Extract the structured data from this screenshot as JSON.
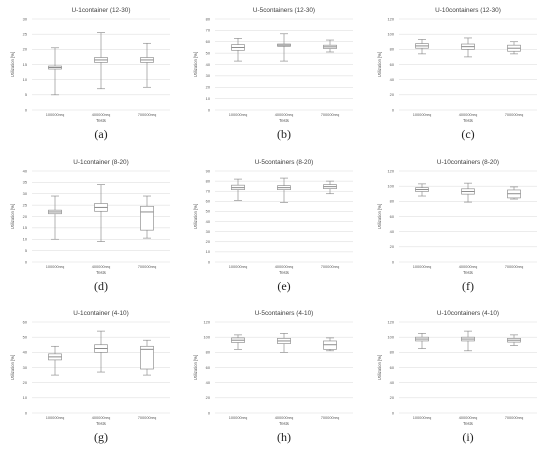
{
  "colors": {
    "box_fill": "#ffffff",
    "median_band": "#7f7f7f",
    "stroke": "#808080",
    "grid": "#d9d9d9",
    "text": "#595959"
  },
  "chart_data": [
    {
      "type": "box",
      "caption": "(a)",
      "title": "U-1container (12-30)",
      "xlabel": "Tests",
      "ylabel": "Utilization [%]",
      "ylim": [
        0,
        30
      ],
      "yticks": [
        0,
        5,
        10,
        15,
        20,
        25,
        30
      ],
      "grid": true,
      "categories": [
        "100000req",
        "400000req",
        "700000req"
      ],
      "boxes": [
        {
          "min": 5,
          "q1": 13.5,
          "median": 14,
          "q3": 14.5,
          "max": 20.5
        },
        {
          "min": 7,
          "q1": 15.7,
          "median": 16.5,
          "q3": 17.3,
          "max": 25.5
        },
        {
          "min": 7.5,
          "q1": 15.7,
          "median": 16.5,
          "q3": 17.3,
          "max": 22
        }
      ]
    },
    {
      "type": "box",
      "caption": "(b)",
      "title": "U-5containers (12-30)",
      "xlabel": "Tests",
      "ylabel": "Utilization [%]",
      "ylim": [
        0,
        80
      ],
      "yticks": [
        0,
        10,
        20,
        30,
        40,
        50,
        60,
        70,
        80
      ],
      "grid": true,
      "categories": [
        "100000req",
        "400000req",
        "700000req"
      ],
      "boxes": [
        {
          "min": 43,
          "q1": 52.5,
          "median": 55,
          "q3": 57.5,
          "max": 63
        },
        {
          "min": 43,
          "q1": 56,
          "median": 57,
          "q3": 58,
          "max": 67
        },
        {
          "min": 51,
          "q1": 54,
          "median": 55.5,
          "q3": 57,
          "max": 61.5
        }
      ]
    },
    {
      "type": "box",
      "caption": "(c)",
      "title": "U-10containers (12-30)",
      "xlabel": "Tests",
      "ylabel": "Utilization [%]",
      "ylim": [
        0,
        120
      ],
      "yticks": [
        0,
        20,
        40,
        60,
        80,
        100,
        120
      ],
      "grid": true,
      "categories": [
        "100000req",
        "400000req",
        "700000req"
      ],
      "boxes": [
        {
          "min": 74,
          "q1": 81.5,
          "median": 84.5,
          "q3": 87.5,
          "max": 93
        },
        {
          "min": 70,
          "q1": 80,
          "median": 83.5,
          "q3": 87,
          "max": 95
        },
        {
          "min": 74,
          "q1": 77.5,
          "median": 81.5,
          "q3": 85.5,
          "max": 90
        }
      ]
    },
    {
      "type": "box",
      "caption": "(d)",
      "title": "U-1container (8-20)",
      "xlabel": "Tests",
      "ylabel": "Utilization [%]",
      "ylim": [
        0,
        40
      ],
      "yticks": [
        0,
        5,
        10,
        15,
        20,
        25,
        30,
        35,
        40
      ],
      "grid": true,
      "categories": [
        "100000req",
        "400000req",
        "700000req"
      ],
      "boxes": [
        {
          "min": 10,
          "q1": 21.2,
          "median": 22,
          "q3": 22.8,
          "max": 29
        },
        {
          "min": 9,
          "q1": 22.3,
          "median": 24,
          "q3": 25.7,
          "max": 34
        },
        {
          "min": 10.5,
          "q1": 14,
          "median": 22,
          "q3": 24.5,
          "max": 29
        }
      ]
    },
    {
      "type": "box",
      "caption": "(e)",
      "title": "U-5containers (8-20)",
      "xlabel": "Tests",
      "ylabel": "Utilization [%]",
      "ylim": [
        0,
        90
      ],
      "yticks": [
        0,
        10,
        20,
        30,
        40,
        50,
        60,
        70,
        80,
        90
      ],
      "grid": true,
      "categories": [
        "100000req",
        "400000req",
        "700000req"
      ],
      "boxes": [
        {
          "min": 61,
          "q1": 71.5,
          "median": 73.5,
          "q3": 76,
          "max": 82
        },
        {
          "min": 59,
          "q1": 71.5,
          "median": 73.5,
          "q3": 75.5,
          "max": 83
        },
        {
          "min": 67.5,
          "q1": 72.5,
          "median": 74.5,
          "q3": 76.5,
          "max": 80
        }
      ]
    },
    {
      "type": "box",
      "caption": "(f)",
      "title": "U-10containers (8-20)",
      "xlabel": "Tests",
      "ylabel": "Utilization [%]",
      "ylim": [
        0,
        120
      ],
      "yticks": [
        0,
        20,
        40,
        60,
        80,
        100,
        120
      ],
      "grid": true,
      "categories": [
        "100000req",
        "400000req",
        "700000req"
      ],
      "boxes": [
        {
          "min": 87,
          "q1": 93,
          "median": 95.5,
          "q3": 98,
          "max": 103
        },
        {
          "min": 79,
          "q1": 89.5,
          "median": 93,
          "q3": 96.5,
          "max": 104
        },
        {
          "min": 83,
          "q1": 84.5,
          "median": 90,
          "q3": 95,
          "max": 99
        }
      ]
    },
    {
      "type": "box",
      "caption": "(g)",
      "title": "U-1container (4-10)",
      "xlabel": "Tests",
      "ylabel": "Utilization [%]",
      "ylim": [
        0,
        60
      ],
      "yticks": [
        0,
        10,
        20,
        30,
        40,
        50,
        60
      ],
      "grid": true,
      "categories": [
        "100000req",
        "400000req",
        "700000req"
      ],
      "boxes": [
        {
          "min": 25,
          "q1": 35,
          "median": 37,
          "q3": 39,
          "max": 44
        },
        {
          "min": 27,
          "q1": 40,
          "median": 42.5,
          "q3": 45,
          "max": 54
        },
        {
          "min": 25,
          "q1": 29,
          "median": 42,
          "q3": 44,
          "max": 48
        }
      ]
    },
    {
      "type": "box",
      "caption": "(h)",
      "title": "U-5containers (4-10)",
      "xlabel": "Tests",
      "ylabel": "Utilization [%]",
      "ylim": [
        0,
        120
      ],
      "yticks": [
        0,
        20,
        40,
        60,
        80,
        100,
        120
      ],
      "grid": true,
      "categories": [
        "100000req",
        "400000req",
        "700000req"
      ],
      "boxes": [
        {
          "min": 84,
          "q1": 93,
          "median": 96,
          "q3": 99,
          "max": 103
        },
        {
          "min": 80,
          "q1": 91.5,
          "median": 95,
          "q3": 98.5,
          "max": 105
        },
        {
          "min": 82,
          "q1": 84,
          "median": 90,
          "q3": 95,
          "max": 99
        }
      ]
    },
    {
      "type": "box",
      "caption": "(i)",
      "title": "U-10containers (4-10)",
      "xlabel": "Tests",
      "ylabel": "Utilization [%]",
      "ylim": [
        0,
        120
      ],
      "yticks": [
        0,
        20,
        40,
        60,
        80,
        100,
        120
      ],
      "grid": true,
      "categories": [
        "100000req",
        "400000req",
        "700000req"
      ],
      "boxes": [
        {
          "min": 85,
          "q1": 95,
          "median": 97.5,
          "q3": 100,
          "max": 105
        },
        {
          "min": 82,
          "q1": 95,
          "median": 97.5,
          "q3": 100,
          "max": 108
        },
        {
          "min": 89,
          "q1": 93.5,
          "median": 96,
          "q3": 98.5,
          "max": 103
        }
      ]
    }
  ]
}
